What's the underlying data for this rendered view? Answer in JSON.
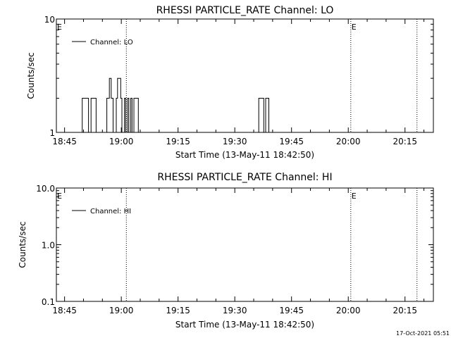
{
  "stamp": "17-Oct-2021 05:51",
  "chart_data": [
    {
      "type": "line",
      "title": "RHESSI PARTICLE_RATE Channel: LO",
      "xlabel": "Start Time (13-May-11 18:42:50)",
      "ylabel": "Counts/sec",
      "y_scale": "log",
      "ylim": [
        1,
        10
      ],
      "y_ticks": [
        {
          "value": 1,
          "label": "1"
        },
        {
          "value": 10,
          "label": "10"
        }
      ],
      "x_tick_labels": [
        "18:45",
        "19:00",
        "19:15",
        "19:30",
        "19:45",
        "20:00",
        "20:15"
      ],
      "legend_entries": [
        "Channel: LO"
      ],
      "event_flags": [
        {
          "label": "E",
          "time": "18:42:50",
          "line": false
        },
        {
          "label": "",
          "time": "19:01:20",
          "line": true
        },
        {
          "label": "E",
          "time": "20:00:40",
          "line": true
        },
        {
          "label": "",
          "time": "20:18:10",
          "line": true
        }
      ],
      "series": [
        {
          "color": "#000000",
          "x": [
            "18:49:40",
            "18:49:40",
            "18:51:20",
            "18:51:20",
            "18:52:00",
            "18:52:00",
            "18:53:20",
            "18:53:20",
            "18:56:10",
            "18:56:10",
            "18:56:50",
            "18:56:50",
            "18:57:20",
            "18:57:20",
            "18:57:50",
            "18:57:50",
            "18:58:40",
            "18:58:40",
            "18:59:00",
            "18:59:00",
            "18:59:50",
            "18:59:50",
            "19:00:10",
            "19:00:10",
            "19:00:50",
            "19:00:50",
            "19:01:10",
            "19:01:10",
            "19:01:40",
            "19:01:40",
            "19:02:00",
            "19:02:00",
            "19:02:30",
            "19:02:30",
            "19:02:50",
            "19:02:50",
            "19:03:20",
            "19:03:20",
            "19:04:30",
            "19:04:30",
            "19:36:20",
            "19:36:20",
            "19:37:40",
            "19:37:40",
            "19:38:10",
            "19:38:10",
            "19:39:00",
            "19:39:00"
          ],
          "values": [
            1,
            2,
            2,
            1,
            1,
            2,
            2,
            1,
            1,
            2,
            2,
            3,
            3,
            2,
            2,
            1,
            1,
            2,
            2,
            3,
            3,
            2,
            2,
            1,
            1,
            2,
            2,
            1,
            1,
            2,
            2,
            1,
            1,
            2,
            2,
            1,
            1,
            2,
            2,
            1,
            1,
            2,
            2,
            1,
            1,
            2,
            2,
            1
          ]
        }
      ]
    },
    {
      "type": "line",
      "title": "RHESSI PARTICLE_RATE Channel: HI",
      "xlabel": "Start Time (13-May-11 18:42:50)",
      "ylabel": "Counts/sec",
      "y_scale": "log",
      "ylim": [
        0.1,
        10
      ],
      "y_ticks": [
        {
          "value": 0.1,
          "label": "0.1"
        },
        {
          "value": 1,
          "label": "1.0"
        },
        {
          "value": 10,
          "label": "10.0"
        }
      ],
      "x_tick_labels": [
        "18:45",
        "19:00",
        "19:15",
        "19:30",
        "19:45",
        "20:00",
        "20:15"
      ],
      "legend_entries": [
        "Channel: HI"
      ],
      "event_flags": [
        {
          "label": "E",
          "time": "18:42:50",
          "line": false
        },
        {
          "label": "",
          "time": "19:01:20",
          "line": true
        },
        {
          "label": "E",
          "time": "20:00:40",
          "line": true
        },
        {
          "label": "",
          "time": "20:18:10",
          "line": true
        }
      ],
      "series": [
        {
          "color": "#000000",
          "x": [],
          "values": []
        }
      ]
    }
  ]
}
